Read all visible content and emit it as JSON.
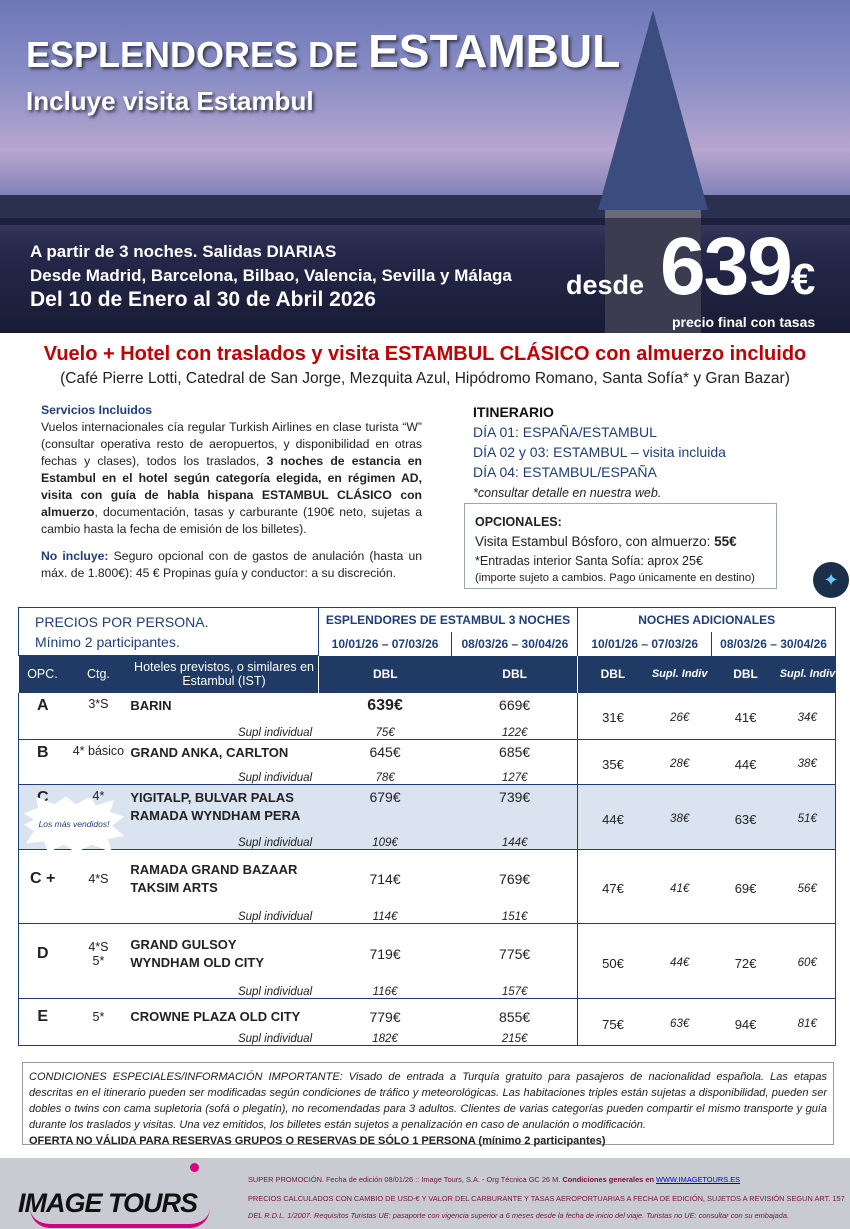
{
  "hero": {
    "title_small": "ESPLENDORES DE",
    "title_big": "ESTAMBUL",
    "subtitle": "Incluye visita Estambul",
    "line1": "A partir de 3 noches. Salidas DIARIAS",
    "line2": "Desde Madrid, Barcelona, Bilbao, Valencia, Sevilla y Málaga",
    "line3": "Del 10 de Enero al 30 de Abril 2026",
    "desde": "desde",
    "price": "639",
    "currency": "€",
    "price_note": "precio final con tasas"
  },
  "headline": "Vuelo + Hotel con traslados y visita ESTAMBUL CLÁSICO con almuerzo incluido",
  "headline_sub": "(Café Pierre Lotti, Catedral de San Jorge, Mezquita Azul, Hipódromo Romano, Santa Sofía* y Gran Bazar)",
  "services": {
    "title": "Servicios Incluidos",
    "text1": "Vuelos internacionales cía regular Turkish Airlines en  clase turista “W”  (consultar operativa resto de aeropuertos, y disponibilidad en otras fechas y clases), todos los traslados, ",
    "bold1": "3 noches de estancia en Estambul en el hotel según categoría elegida, en régimen AD, visita con guía de habla hispana ESTAMBUL CLÁSICO con almuerzo",
    "text2": ",  documentación, tasas y carburante (190€ neto, sujetas a cambio hasta la fecha de emisión de los billetes).",
    "noinc_label": "No incluye:",
    "noinc_text": " Seguro opcional con de gastos de anulación (hasta un máx. de  1.800€): 45 €  Propinas guía y conductor: a su discreción."
  },
  "itinerary": {
    "title": "ITINERARIO",
    "days": [
      "DÍA 01: ESPAÑA/ESTAMBUL",
      "DÍA 02 y 03: ESTAMBUL – visita incluida",
      "DÍA 04: ESTAMBUL/ESPAÑA"
    ],
    "note": "*consultar detalle en nuestra web."
  },
  "optionals": {
    "title": "OPCIONALES:",
    "item": "Visita Estambul Bósforo, con almuerzo: ",
    "item_price": "55€",
    "note1": "*Entradas interior Santa Sofía: aprox 25€",
    "note2": "(importe sujeto a cambios. Pago únicamente en destino)"
  },
  "table": {
    "intro1": "PRECIOS POR PERSONA.",
    "intro2": "Mínimo 2 participantes.",
    "group1": "ESPLENDORES DE ESTAMBUL 3 NOCHES",
    "group2": "NOCHES ADICIONALES",
    "period1": "10/01/26 – 07/03/26",
    "period2": "08/03/26 – 30/04/26",
    "col_opc": "OPC.",
    "col_ctg": "Ctg.",
    "col_hotels": "Hoteles previstos, o similares en Estambul (IST)",
    "col_dbl": "DBL",
    "col_supl": "Supl. Indiv",
    "supl_label": "Supl individual",
    "starburst": "Los más vendidos!",
    "rows": [
      {
        "opc": "A",
        "ctg": "3*S",
        "hotels": "BARIN",
        "p1": "639€",
        "p2": "669€",
        "s1": "75€",
        "s2": "122€",
        "n1": "31€",
        "ns1": "26€",
        "n2": "41€",
        "ns2": "34€"
      },
      {
        "opc": "B",
        "ctg": "4* básico",
        "hotels": "GRAND ANKA, CARLTON",
        "p1": "645€",
        "p2": "685€",
        "s1": "78€",
        "s2": "127€",
        "n1": "35€",
        "ns1": "28€",
        "n2": "44€",
        "ns2": "38€"
      },
      {
        "opc": "C",
        "ctg": "4*",
        "hotels": "YIGITALP, BULVAR PALAS\nRAMADA WYNDHAM PERA",
        "p1": "679€",
        "p2": "739€",
        "s1": "109€",
        "s2": "144€",
        "n1": "44€",
        "ns1": "38€",
        "n2": "63€",
        "ns2": "51€"
      },
      {
        "opc": "C +",
        "ctg": "4*S",
        "hotels": "RAMADA GRAND BAZAAR\nTAKSIM ARTS",
        "p1": "714€",
        "p2": "769€",
        "s1": "114€",
        "s2": "151€",
        "n1": "47€",
        "ns1": "41€",
        "n2": "69€",
        "ns2": "56€"
      },
      {
        "opc": "D",
        "ctg": "4*S\n5*",
        "hotels": "GRAND GULSOY\nWYNDHAM OLD CITY",
        "p1": "719€",
        "p2": "775€",
        "s1": "116€",
        "s2": "157€",
        "n1": "50€",
        "ns1": "44€",
        "n2": "72€",
        "ns2": "60€"
      },
      {
        "opc": "E",
        "ctg": "5*",
        "hotels": "CROWNE PLAZA OLD CITY",
        "p1": "779€",
        "p2": "855€",
        "s1": "182€",
        "s2": "215€",
        "n1": "75€",
        "ns1": "63€",
        "n2": "94€",
        "ns2": "81€"
      }
    ]
  },
  "conditions": {
    "text": "CONDICIONES ESPECIALES/INFORMACIÓN IMPORTANTE: Visado de entrada a Turquía gratuito para pasajeros de nacionalidad española. Las etapas descritas en el itinerario pueden ser modificadas según condiciones de tráfico y meteorológicas. Las habitaciones triples están sujetas a disponibilidad, pueden ser dobles o twins con cama supletoria (sofá o plegatín), no recomendadas para 3 adultos. Clientes de varias categorías pueden compartir el mismo transporte y guía durante los traslados y visitas. Una vez emitidos, los billetes están sujetos a penalización en caso de anulación o modificación.",
    "bold": "OFERTA NO VÁLIDA PARA RESERVAS GRUPOS O RESERVAS DE SÓLO 1 PERSONA (mínimo 2 participantes)"
  },
  "footer": {
    "logo": "IMAGE TOURS",
    "line1": "SUPER PROMOCIÓN. Fecha de edición 08/01/26 ::  Image Tours, S.A.  -  Org Técnica GC 26 M. ",
    "line1_bold": "Condiciones generales en ",
    "link": "WWW.IMAGETOURS.ES",
    "line2": "PRECIOS CALCULADOS CON CAMBIO DE USD-€ Y VALOR DEL CARBURANTE Y TASAS AEROPORTUARIAS A FECHA DE EDICIÓN, SUJETOS A REVISIÓN SEGUN ART. 157",
    "line3": "DEL R.D.L. 1/2007. Requisitos Turistas UE: pasaporte con vigencia superior a 6 meses desde la fecha de inicio del viaje. Turistas no UE: consultar con su embajada."
  },
  "colors": {
    "navy": "#1f3a64",
    "red": "#c00000",
    "magenta": "#d6007e",
    "highlight": "#dae3f0"
  }
}
